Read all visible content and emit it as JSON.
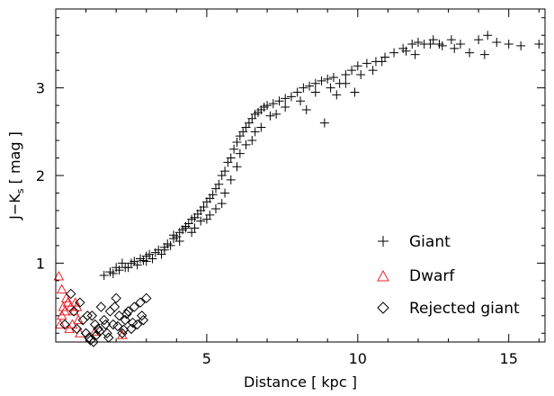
{
  "chart_data": {
    "type": "scatter",
    "title": "",
    "xlabel": "Distance [ kpc ]",
    "ylabel": "J−K_s [ mag ]",
    "ylabel_parts": {
      "main": "J−K",
      "sub": "s",
      "unit": " [ mag ]"
    },
    "xlim": [
      0,
      16.2
    ],
    "ylim": [
      0.1,
      3.9
    ],
    "xticks": [
      5,
      10,
      15
    ],
    "yticks": [
      1,
      2,
      3
    ],
    "grid": false,
    "legend_position": "bottom-right",
    "series": [
      {
        "name": "Giant",
        "marker": "plus",
        "color": "#000000",
        "x": [
          1.6,
          1.8,
          1.9,
          2.0,
          2.1,
          2.2,
          2.3,
          2.5,
          2.6,
          2.7,
          2.8,
          2.9,
          3.0,
          3.1,
          3.2,
          3.3,
          3.4,
          3.5,
          3.6,
          3.7,
          3.8,
          3.9,
          4.0,
          4.1,
          4.2,
          4.3,
          4.4,
          4.5,
          4.6,
          4.7,
          4.8,
          4.9,
          5.0,
          5.1,
          5.2,
          5.3,
          5.4,
          5.5,
          5.6,
          5.7,
          5.8,
          5.9,
          6.0,
          6.1,
          6.2,
          6.3,
          6.4,
          6.5,
          6.6,
          6.7,
          6.8,
          6.9,
          7.0,
          7.2,
          7.4,
          7.6,
          7.8,
          8.0,
          8.2,
          8.4,
          8.6,
          8.8,
          9.0,
          9.2,
          9.4,
          9.6,
          9.8,
          10.0,
          10.3,
          10.6,
          10.9,
          11.2,
          11.5,
          11.8,
          12.0,
          12.2,
          12.5,
          12.8,
          13.1,
          13.4,
          13.7,
          14.0,
          14.3,
          14.6,
          15.0,
          15.4,
          16.0,
          2.4,
          3.0,
          3.6,
          4.1,
          4.6,
          5.1,
          5.6,
          6.1,
          6.6,
          7.1,
          7.6,
          8.1,
          8.6,
          9.1,
          9.6,
          10.1,
          10.8,
          11.6,
          12.4,
          13.2,
          14.2,
          3.9,
          4.3,
          4.8,
          5.3,
          5.8,
          6.3,
          6.8,
          7.3,
          8.3,
          9.3,
          4.5,
          5.0,
          5.5,
          6.0,
          6.5,
          8.9,
          9.9,
          10.5,
          11.9,
          12.7
        ],
        "y": [
          0.86,
          0.9,
          0.88,
          0.95,
          0.92,
          1.0,
          0.95,
          1.0,
          1.02,
          0.98,
          1.05,
          1.03,
          1.08,
          1.1,
          1.05,
          1.12,
          1.15,
          1.1,
          1.18,
          1.22,
          1.2,
          1.28,
          1.3,
          1.35,
          1.38,
          1.42,
          1.45,
          1.5,
          1.52,
          1.56,
          1.6,
          1.64,
          1.7,
          1.74,
          1.78,
          1.85,
          1.9,
          2.0,
          2.05,
          2.15,
          2.2,
          2.3,
          2.38,
          2.45,
          2.5,
          2.55,
          2.6,
          2.65,
          2.7,
          2.72,
          2.75,
          2.78,
          2.8,
          2.82,
          2.85,
          2.88,
          2.9,
          2.95,
          3.0,
          3.02,
          3.05,
          3.08,
          3.1,
          3.12,
          3.05,
          3.15,
          3.2,
          3.25,
          3.28,
          3.3,
          3.35,
          3.4,
          3.45,
          3.5,
          3.52,
          3.5,
          3.55,
          3.48,
          3.55,
          3.5,
          3.4,
          3.55,
          3.6,
          3.52,
          3.5,
          3.48,
          3.5,
          0.95,
          1.02,
          1.15,
          1.25,
          1.4,
          1.55,
          1.8,
          2.25,
          2.5,
          2.68,
          2.78,
          2.85,
          2.95,
          3.0,
          3.05,
          3.15,
          3.3,
          3.42,
          3.5,
          3.45,
          3.38,
          1.32,
          1.4,
          1.48,
          1.62,
          1.95,
          2.35,
          2.55,
          2.7,
          2.75,
          2.92,
          1.35,
          1.5,
          1.68,
          2.1,
          2.4,
          2.6,
          2.95,
          3.2,
          3.38,
          3.5
        ]
      },
      {
        "name": "Dwarf",
        "marker": "triangle",
        "color": "#e8242b",
        "x": [
          0.1,
          0.2,
          0.25,
          0.3,
          0.4,
          0.5,
          0.55,
          0.6,
          0.7,
          0.75,
          0.35,
          0.45,
          0.65,
          0.2,
          0.8,
          1.3,
          2.2,
          0.15
        ],
        "y": [
          0.85,
          0.7,
          0.5,
          0.45,
          0.55,
          0.5,
          0.3,
          0.45,
          0.5,
          0.35,
          0.6,
          0.25,
          0.55,
          0.4,
          0.2,
          0.22,
          0.18,
          0.3
        ]
      },
      {
        "name": "Rejected giant",
        "marker": "diamond",
        "color": "#000000",
        "x": [
          0.3,
          0.5,
          0.6,
          0.8,
          0.9,
          1.0,
          1.1,
          1.2,
          1.3,
          1.4,
          1.5,
          1.6,
          1.7,
          1.8,
          1.9,
          2.0,
          2.1,
          2.2,
          2.3,
          2.4,
          2.5,
          2.6,
          2.7,
          2.8,
          2.9,
          3.0,
          1.15,
          1.45,
          1.75,
          2.05,
          2.35,
          0.7,
          1.05,
          1.35,
          1.65,
          1.95,
          2.25,
          2.55,
          2.85,
          1.25
        ],
        "y": [
          0.3,
          0.65,
          0.45,
          0.55,
          0.35,
          0.2,
          0.15,
          0.4,
          0.3,
          0.25,
          0.5,
          0.35,
          0.2,
          0.45,
          0.3,
          0.6,
          0.4,
          0.2,
          0.35,
          0.45,
          0.25,
          0.5,
          0.3,
          0.55,
          0.35,
          0.6,
          0.12,
          0.22,
          0.15,
          0.28,
          0.42,
          0.25,
          0.4,
          0.18,
          0.3,
          0.5,
          0.24,
          0.32,
          0.4,
          0.1
        ]
      }
    ]
  }
}
